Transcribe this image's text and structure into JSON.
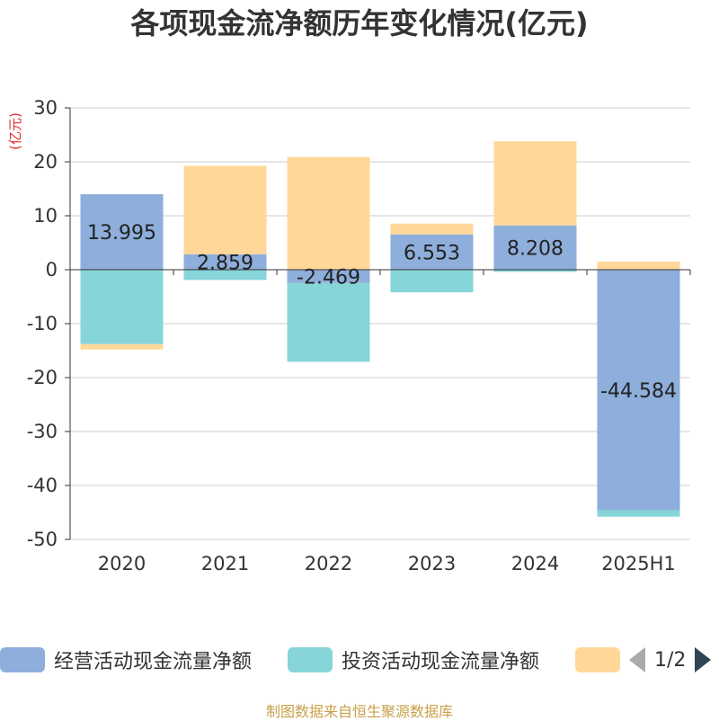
{
  "chart_data": {
    "type": "bar",
    "stacked": true,
    "title": "各项现金流净额历年变化情况(亿元)",
    "ylabel": "(亿元)",
    "categories": [
      "2020",
      "2021",
      "2022",
      "2023",
      "2024",
      "2025H1"
    ],
    "ylim": [
      -50,
      30
    ],
    "yticks": [
      30,
      20,
      10,
      0,
      -10,
      -20,
      -30,
      -40,
      -50
    ],
    "grid": true,
    "legend_position": "bottom",
    "series": [
      {
        "name": "经营活动现金流量净额",
        "color": "#8eaedb",
        "values": [
          13.995,
          2.859,
          -2.469,
          6.553,
          8.208,
          -44.584
        ],
        "labels": [
          "13.995",
          "2.859",
          "-2.469",
          "6.553",
          "8.208",
          "-44.584"
        ]
      },
      {
        "name": "投资活动现金流量净额",
        "color": "#86d5d8",
        "values": [
          -13.8,
          -1.9,
          -14.6,
          -4.2,
          -0.4,
          -1.2
        ]
      },
      {
        "name": "",
        "color": "#ffd899",
        "values": [
          -1.0,
          16.4,
          20.9,
          2.0,
          15.6,
          1.5
        ]
      }
    ]
  },
  "legend": {
    "pager": "1/2"
  },
  "source": "制图数据来自恒生聚源数据库"
}
